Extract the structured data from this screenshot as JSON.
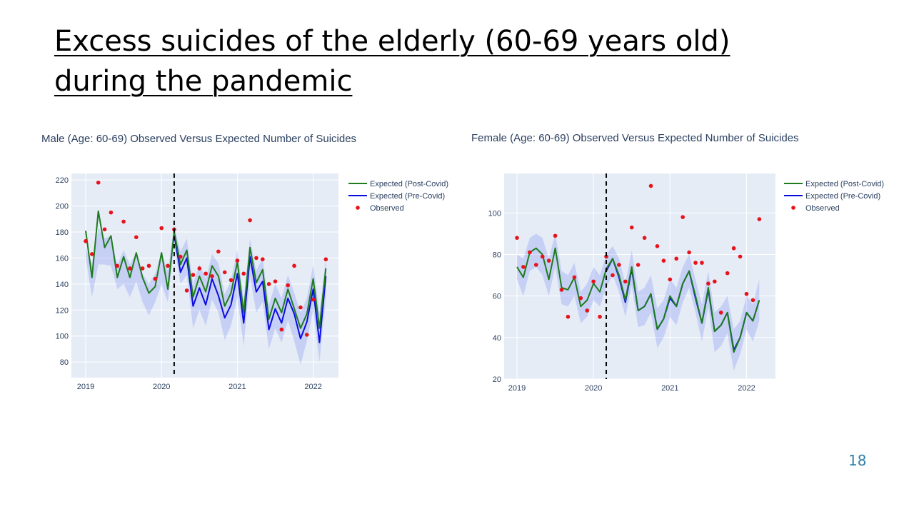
{
  "slide": {
    "title_line1": "Excess suicides of the elderly (60-69 years old)",
    "title_line2": "during the pandemic",
    "page_number": "18"
  },
  "colors": {
    "plot_bg": "#E5ECF6",
    "expected_post": "#1E7B1E",
    "expected_pre": "#0B0BE0",
    "observed": "#E8121B",
    "band": "rgba(90,110,240,0.22)",
    "grid": "#ffffff",
    "title_text": "#2A3F5F",
    "page_number": "#2E7FA8"
  },
  "chart_data": [
    {
      "type": "line",
      "title": "Male (Age: 60-69) Observed Versus Expected Number of Suicides",
      "xlabel": "",
      "ylabel": "",
      "x_start": "2019-01",
      "x_step": "month",
      "xticks": [
        "2019",
        "2020",
        "2021",
        "2022"
      ],
      "yticks": [
        80,
        100,
        120,
        140,
        160,
        180,
        200,
        220
      ],
      "ylim": [
        68,
        225
      ],
      "grid": true,
      "legend_position": "top-right",
      "vline": {
        "x": "2020-03",
        "style": "dashed"
      },
      "series": [
        {
          "name": "Expected (Post-Covid)",
          "kind": "line",
          "values": [
            181,
            145,
            196,
            168,
            177,
            145,
            161,
            145,
            164,
            145,
            133,
            138,
            164,
            136,
            180,
            155,
            166,
            130,
            146,
            134,
            154,
            146,
            123,
            133,
            157,
            118,
            168,
            141,
            151,
            113,
            129,
            118,
            136,
            121,
            106,
            117,
            144,
            106,
            152
          ]
        },
        {
          "name": "Expected (Pre-Covid)",
          "kind": "line",
          "start_index": 14,
          "values": [
            178,
            149,
            160,
            123,
            137,
            124,
            144,
            131,
            114,
            124,
            148,
            110,
            161,
            134,
            142,
            105,
            121,
            110,
            129,
            117,
            98,
            111,
            136,
            95,
            146
          ]
        },
        {
          "name": "Observed",
          "kind": "markers",
          "values": [
            173,
            163,
            218,
            182,
            195,
            154,
            188,
            152,
            176,
            152,
            154,
            144,
            183,
            154,
            182,
            161,
            135,
            147,
            152,
            148,
            146,
            165,
            149,
            143,
            158,
            148,
            189,
            160,
            159,
            140,
            142,
            105,
            139,
            154,
            122,
            101,
            128,
            null,
            159
          ]
        },
        {
          "name": "",
          "kind": "band",
          "start_index": 0,
          "upper": [
            168,
            156,
            183,
            175,
            177,
            155,
            166,
            155,
            164,
            148,
            140,
            148,
            164,
            150,
            185,
            165,
            175,
            140,
            155,
            144,
            163,
            156,
            132,
            143,
            166,
            128,
            175,
            150,
            160,
            124,
            140,
            129,
            147,
            133,
            118,
            129,
            155,
            118,
            160
          ],
          "lower": [
            160,
            130,
            155,
            155,
            154,
            136,
            140,
            130,
            142,
            126,
            116,
            126,
            140,
            126,
            170,
            140,
            147,
            106,
            120,
            108,
            128,
            118,
            97,
            108,
            130,
            92,
            146,
            118,
            126,
            90,
            106,
            95,
            112,
            96,
            78,
            96,
            120,
            80,
            130
          ]
        }
      ]
    },
    {
      "type": "line",
      "title": "Female (Age: 60-69) Observed Versus Expected Number of Suicides",
      "xlabel": "",
      "ylabel": "",
      "x_start": "2019-01",
      "x_step": "month",
      "xticks": [
        "2019",
        "2020",
        "2021",
        "2022"
      ],
      "yticks": [
        20,
        40,
        60,
        80,
        100
      ],
      "ylim": [
        20,
        119
      ],
      "grid": true,
      "legend_position": "top-right",
      "vline": {
        "x": "2020-03",
        "style": "dashed"
      },
      "series": [
        {
          "name": "Expected (Post-Covid)",
          "kind": "line",
          "values": [
            74,
            69,
            81,
            83,
            80,
            68,
            83,
            64,
            63,
            69,
            55,
            58,
            66,
            62,
            73,
            78,
            70,
            58,
            74,
            53,
            55,
            61,
            44,
            49,
            60,
            55,
            66,
            72,
            60,
            47,
            64,
            43,
            46,
            52,
            33,
            40,
            52,
            48,
            58
          ]
        },
        {
          "name": "Expected (Pre-Covid)",
          "kind": "line",
          "start_index": 14,
          "values": [
            72,
            78,
            69,
            57,
            73,
            53,
            55,
            61,
            44,
            49,
            59,
            55,
            66,
            72,
            59,
            47,
            63,
            43,
            46,
            52,
            34,
            40,
            52,
            48,
            58
          ]
        },
        {
          "name": "Observed",
          "kind": "markers",
          "values": [
            88,
            74,
            81,
            75,
            79,
            77,
            89,
            63,
            50,
            69,
            59,
            53,
            67,
            50,
            79,
            70,
            75,
            67,
            93,
            75,
            88,
            113,
            84,
            77,
            68,
            78,
            98,
            81,
            76,
            76,
            66,
            67,
            52,
            71,
            83,
            79,
            61,
            58,
            97
          ]
        },
        {
          "name": "",
          "kind": "band",
          "start_index": 0,
          "upper": [
            80,
            78,
            88,
            90,
            88,
            78,
            90,
            72,
            70,
            76,
            62,
            66,
            74,
            70,
            80,
            84,
            78,
            66,
            82,
            62,
            64,
            70,
            54,
            58,
            68,
            64,
            74,
            80,
            68,
            56,
            72,
            52,
            55,
            60,
            44,
            48,
            60,
            56,
            68
          ],
          "lower": [
            68,
            60,
            72,
            74,
            70,
            60,
            74,
            56,
            55,
            60,
            47,
            50,
            58,
            55,
            64,
            70,
            62,
            50,
            65,
            45,
            46,
            52,
            35,
            40,
            50,
            46,
            57,
            64,
            52,
            38,
            55,
            33,
            36,
            42,
            24,
            32,
            44,
            38,
            48
          ]
        }
      ]
    }
  ]
}
